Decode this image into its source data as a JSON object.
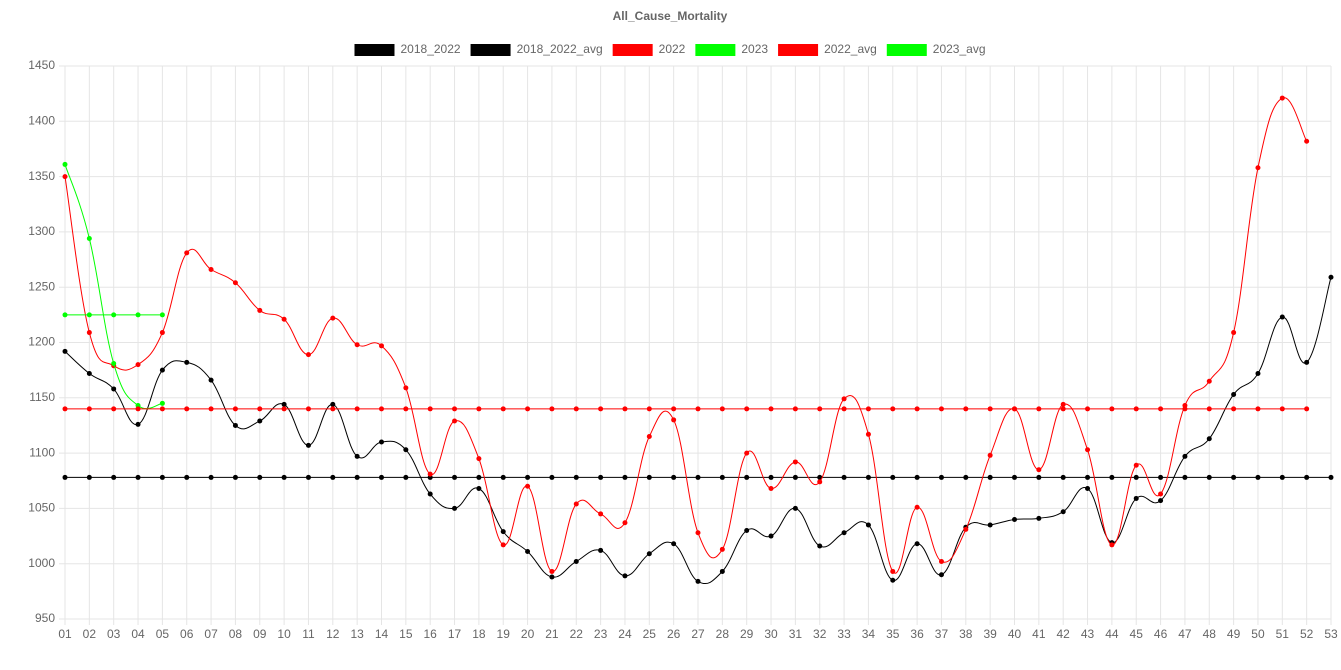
{
  "chart_data": {
    "type": "line",
    "title": "All_Cause_Mortality",
    "categories": [
      "01",
      "02",
      "03",
      "04",
      "05",
      "06",
      "07",
      "08",
      "09",
      "10",
      "11",
      "12",
      "13",
      "14",
      "15",
      "16",
      "17",
      "18",
      "19",
      "20",
      "21",
      "22",
      "23",
      "24",
      "25",
      "26",
      "27",
      "28",
      "29",
      "30",
      "31",
      "32",
      "33",
      "34",
      "35",
      "36",
      "37",
      "38",
      "39",
      "40",
      "41",
      "42",
      "43",
      "44",
      "45",
      "46",
      "47",
      "48",
      "49",
      "50",
      "51",
      "52",
      "53"
    ],
    "ylim": [
      950,
      1450
    ],
    "yticks": [
      950,
      1000,
      1050,
      1100,
      1150,
      1200,
      1250,
      1300,
      1350,
      1400,
      1450
    ],
    "grid": true,
    "legend_position": "top",
    "series": [
      {
        "name": "2018_2022",
        "color": "#000000",
        "values": [
          1192,
          1172,
          1158,
          1126,
          1175,
          1182,
          1166,
          1125,
          1129,
          1144,
          1107,
          1144,
          1097,
          1110,
          1103,
          1063,
          1050,
          1068,
          1029,
          1011,
          988,
          1002,
          1012,
          989,
          1009,
          1018,
          984,
          993,
          1030,
          1025,
          1050,
          1016,
          1028,
          1035,
          985,
          1018,
          990,
          1033,
          1035,
          1040,
          1041,
          1047,
          1068,
          1019,
          1059,
          1057,
          1097,
          1113,
          1153,
          1172,
          1223,
          1182,
          1259
        ]
      },
      {
        "name": "2018_2022_avg",
        "color": "#000000",
        "values": [
          1078,
          1078,
          1078,
          1078,
          1078,
          1078,
          1078,
          1078,
          1078,
          1078,
          1078,
          1078,
          1078,
          1078,
          1078,
          1078,
          1078,
          1078,
          1078,
          1078,
          1078,
          1078,
          1078,
          1078,
          1078,
          1078,
          1078,
          1078,
          1078,
          1078,
          1078,
          1078,
          1078,
          1078,
          1078,
          1078,
          1078,
          1078,
          1078,
          1078,
          1078,
          1078,
          1078,
          1078,
          1078,
          1078,
          1078,
          1078,
          1078,
          1078,
          1078,
          1078,
          1078
        ]
      },
      {
        "name": "2022",
        "color": "#ff0000",
        "values": [
          1350,
          1209,
          1179,
          1180,
          1209,
          1281,
          1266,
          1254,
          1229,
          1221,
          1189,
          1222,
          1198,
          1197,
          1159,
          1081,
          1129,
          1095,
          1017,
          1070,
          993,
          1054,
          1045,
          1037,
          1115,
          1130,
          1028,
          1013,
          1100,
          1068,
          1092,
          1074,
          1149,
          1117,
          993,
          1051,
          1002,
          1031,
          1098,
          1140,
          1085,
          1144,
          1103,
          1017,
          1089,
          1063,
          1143,
          1165,
          1209,
          1358,
          1421,
          1382,
          null
        ]
      },
      {
        "name": "2023",
        "color": "#00ff00",
        "values": [
          1361,
          1294,
          1181,
          1143,
          1145,
          null,
          null,
          null,
          null,
          null,
          null,
          null,
          null,
          null,
          null,
          null,
          null,
          null,
          null,
          null,
          null,
          null,
          null,
          null,
          null,
          null,
          null,
          null,
          null,
          null,
          null,
          null,
          null,
          null,
          null,
          null,
          null,
          null,
          null,
          null,
          null,
          null,
          null,
          null,
          null,
          null,
          null,
          null,
          null,
          null,
          null,
          null,
          null
        ]
      },
      {
        "name": "2022_avg",
        "color": "#ff0000",
        "values": [
          1140,
          1140,
          1140,
          1140,
          1140,
          1140,
          1140,
          1140,
          1140,
          1140,
          1140,
          1140,
          1140,
          1140,
          1140,
          1140,
          1140,
          1140,
          1140,
          1140,
          1140,
          1140,
          1140,
          1140,
          1140,
          1140,
          1140,
          1140,
          1140,
          1140,
          1140,
          1140,
          1140,
          1140,
          1140,
          1140,
          1140,
          1140,
          1140,
          1140,
          1140,
          1140,
          1140,
          1140,
          1140,
          1140,
          1140,
          1140,
          1140,
          1140,
          1140,
          1140,
          null
        ]
      },
      {
        "name": "2023_avg",
        "color": "#00ff00",
        "values": [
          1225,
          1225,
          1225,
          1225,
          1225,
          null,
          null,
          null,
          null,
          null,
          null,
          null,
          null,
          null,
          null,
          null,
          null,
          null,
          null,
          null,
          null,
          null,
          null,
          null,
          null,
          null,
          null,
          null,
          null,
          null,
          null,
          null,
          null,
          null,
          null,
          null,
          null,
          null,
          null,
          null,
          null,
          null,
          null,
          null,
          null,
          null,
          null,
          null,
          null,
          null,
          null,
          null,
          null
        ]
      }
    ]
  }
}
